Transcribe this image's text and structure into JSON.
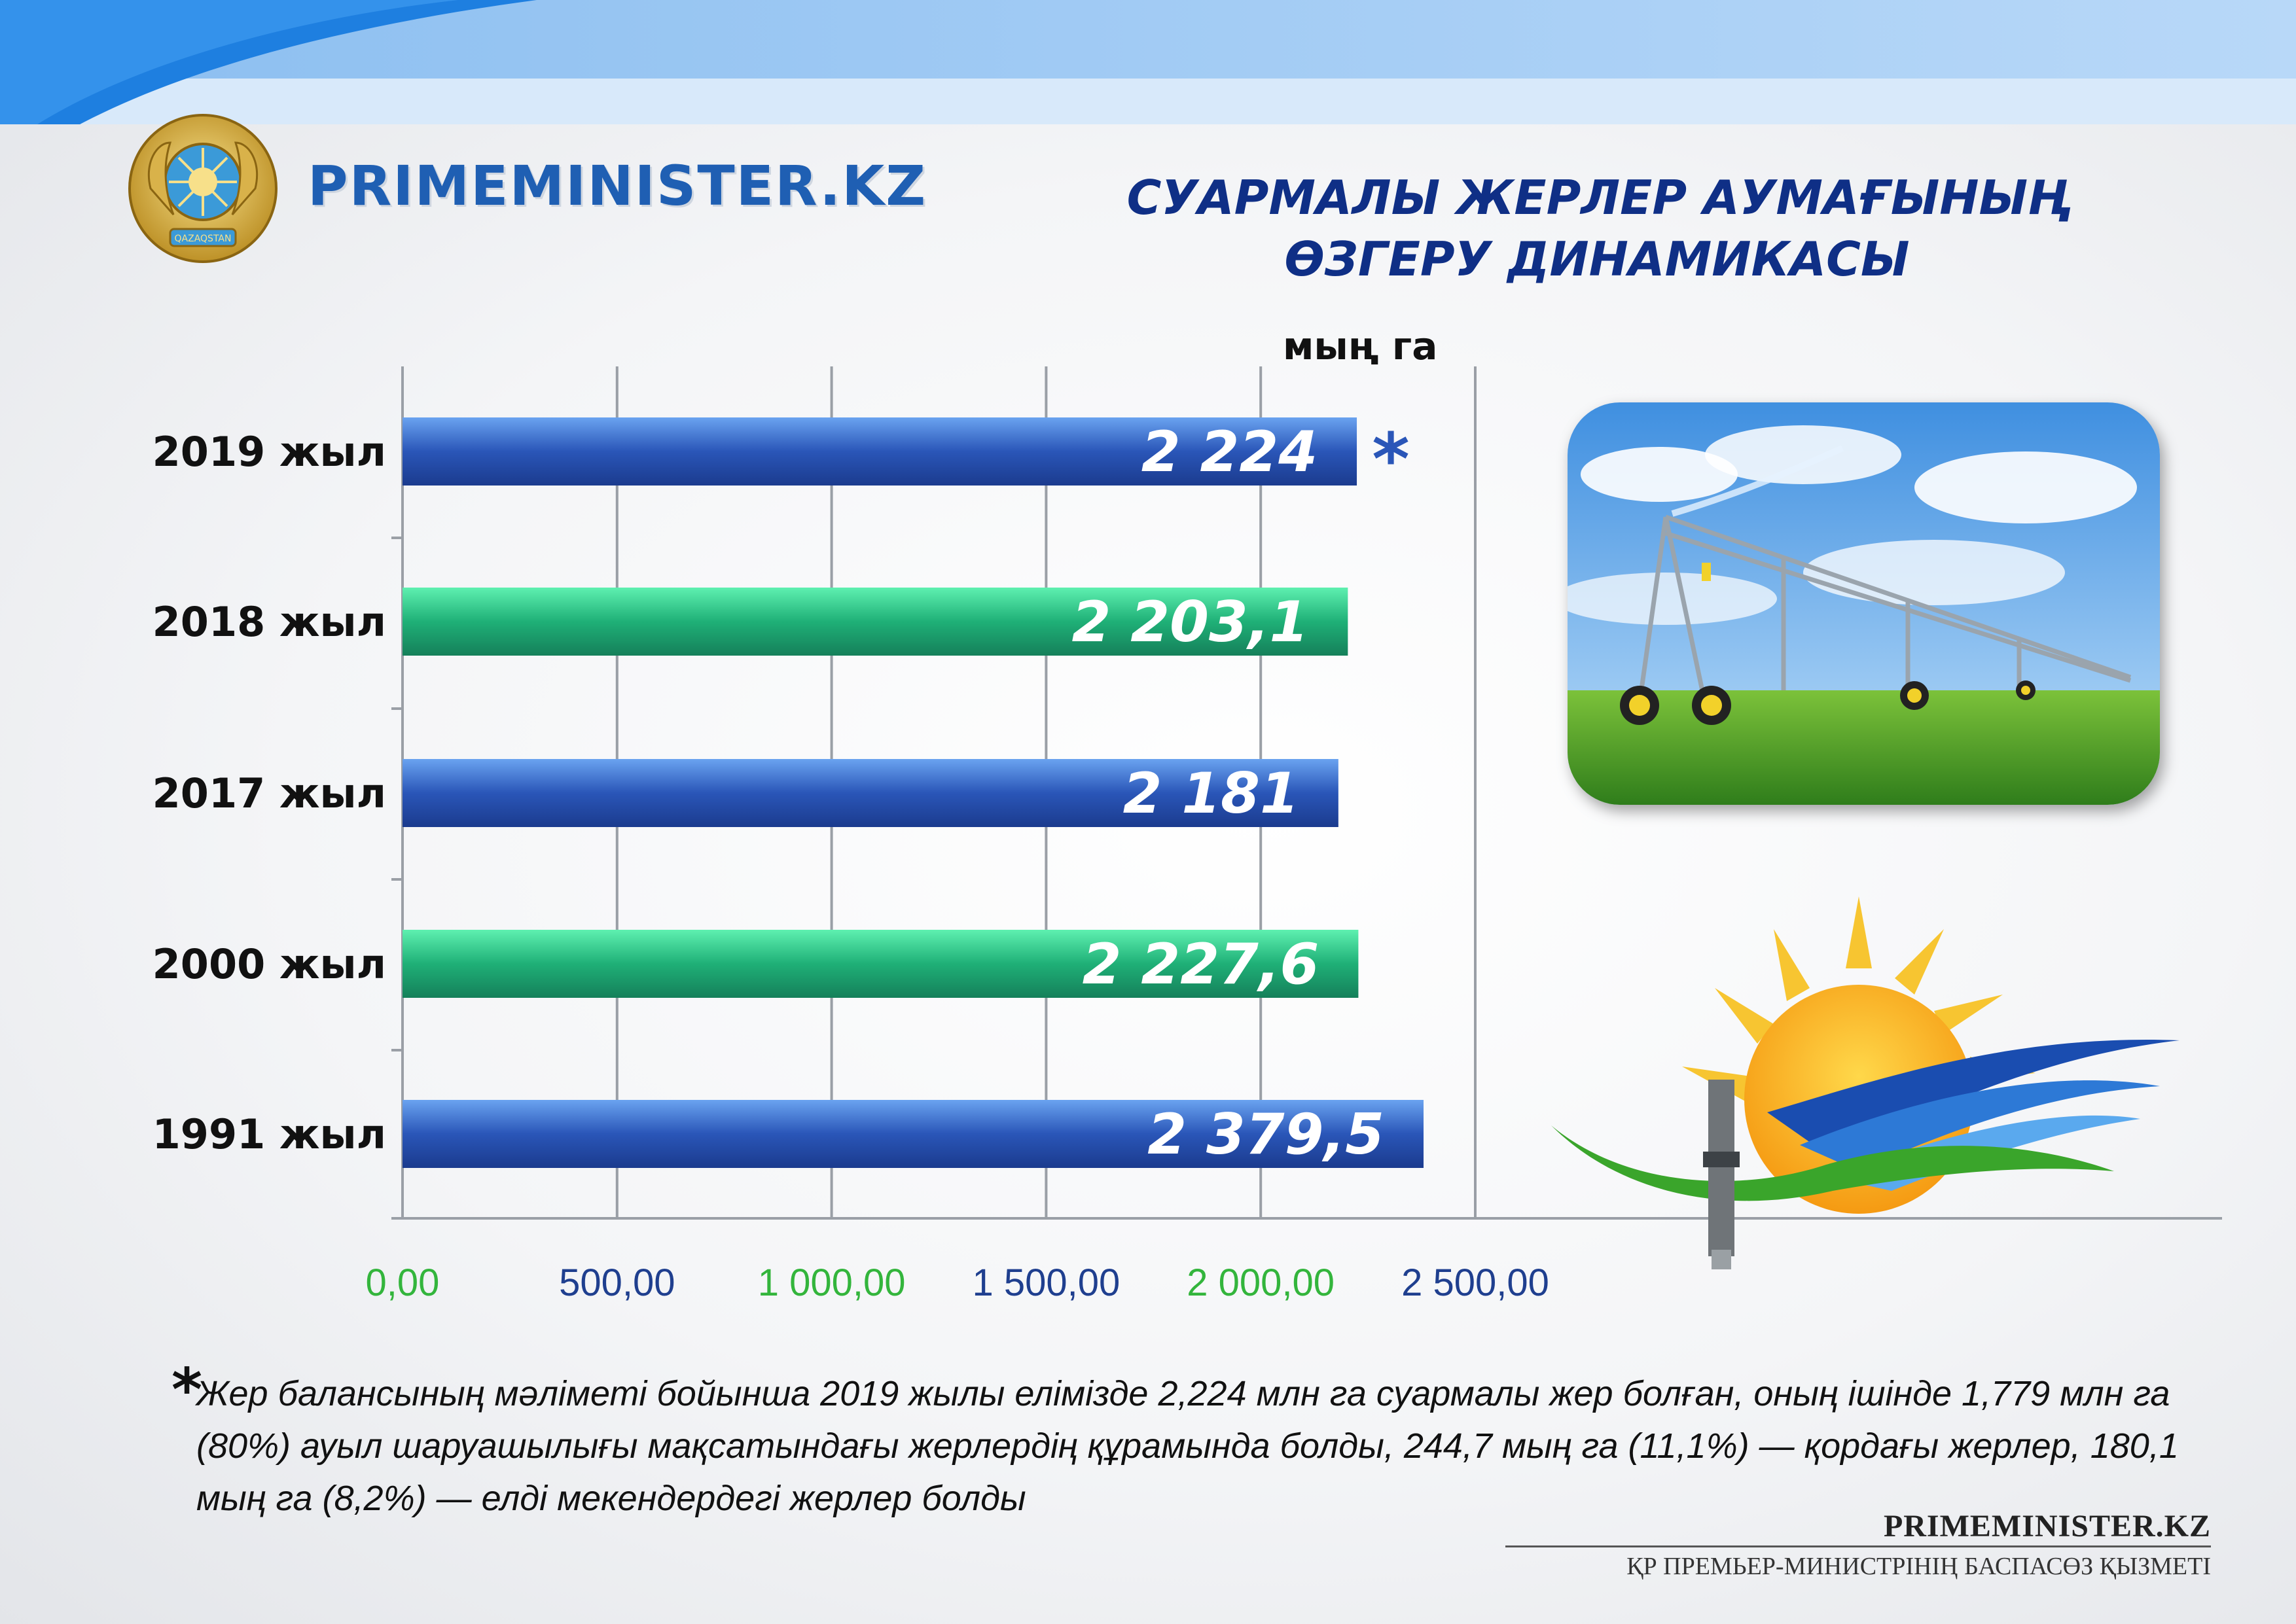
{
  "header": {
    "brand": "PRIMEMINISTER.KZ",
    "emblem_text": "QAZAQSTAN",
    "title_line1": "СУАРМАЛЫ ЖЕРЛЕР АУМАҒЫНЫҢ",
    "title_line2": "ӨЗГЕРУ ДИНАМИКАСЫ"
  },
  "chart_data": {
    "type": "bar",
    "orientation": "horizontal",
    "unit": "мың га",
    "categories": [
      "2019 жыл",
      "2018 жыл",
      "2017 жыл",
      "2000 жыл",
      "1991 жыл"
    ],
    "values": [
      2224,
      2203.1,
      2181,
      2227.6,
      2379.5
    ],
    "value_labels": [
      "2 224",
      "2 203,1",
      "2 181",
      "2 227,6",
      "2 379,5"
    ],
    "bar_colors": [
      "#2a56b8",
      "#1fb077",
      "#2a56b8",
      "#1fb077",
      "#2a56b8"
    ],
    "asterisk_marker": "*",
    "xlim": [
      0,
      2500
    ],
    "x_ticks": [
      0,
      500,
      1000,
      1500,
      2000,
      2500
    ],
    "x_tick_labels": [
      "0,00",
      "500,00",
      "1 000,00",
      "1 500,00",
      "2 000,00",
      "2 500,00"
    ],
    "x_tick_colors": [
      "#33b53c",
      "#1f3f8f",
      "#33b53c",
      "#1f3f8f",
      "#33b53c",
      "#1f3f8f"
    ],
    "grid": true
  },
  "footnote": {
    "star": "*",
    "text": "Жер балансының мәліметі бойынша 2019 жылы елімізде 2,224 млн га суармалы жер болған, оның ішінде 1,779 млн га (80%) ауыл шаруашылығы мақсатындағы жерлердің құрамында болды, 244,7 мың га (11,1%) — қордағы жерлер, 180,1 мың га (8,2%) — елді мекендердегі жерлер болды"
  },
  "footer": {
    "brand": "PRIMEMINISTER.KZ",
    "subtitle": "ҚР ПРЕМЬЕР-МИНИСТРІНІҢ БАСПАСӨЗ ҚЫЗМЕТІ"
  },
  "colors": {
    "accent_blue": "#2a56b8",
    "accent_green": "#1fb077",
    "title_navy": "#0f2f86",
    "band_light": "#9cc7f3"
  }
}
